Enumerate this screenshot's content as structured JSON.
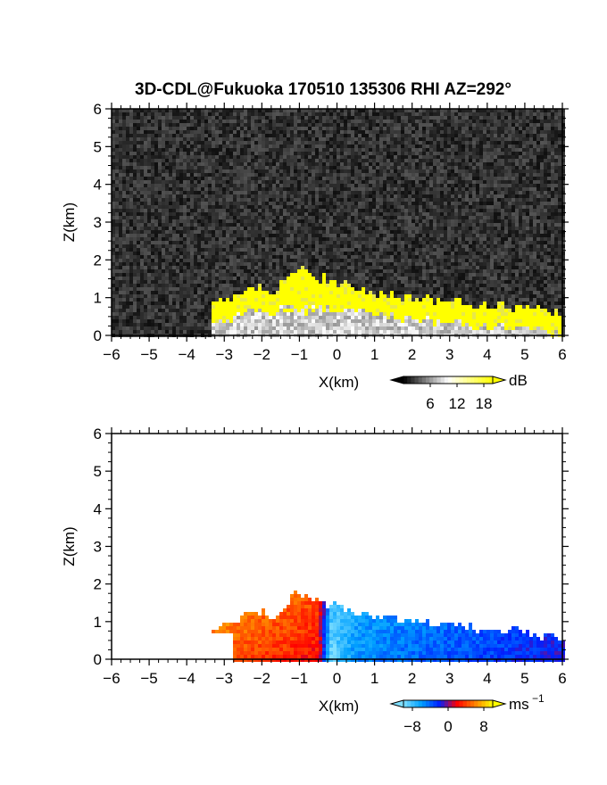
{
  "title": "3D-CDL@Fukuoka 170510 135306 RHI AZ=292°",
  "chart_data": [
    {
      "type": "heatmap",
      "quantity": "signal intensity",
      "xlabel": "X(km)",
      "ylabel": "Z(km)",
      "xlim": [
        -6,
        6
      ],
      "ylim": [
        0,
        6
      ],
      "x_ticks": [
        "-6",
        "-5",
        "-4",
        "-3",
        "-2",
        "-1",
        "0",
        "1",
        "2",
        "3",
        "4",
        "5",
        "6"
      ],
      "y_ticks": [
        "0",
        "1",
        "2",
        "3",
        "4",
        "5",
        "6"
      ],
      "background": "noise",
      "colorbar": {
        "unit": "dB",
        "ticks": [
          "6",
          "12",
          "18"
        ],
        "tick_values": [
          6,
          12,
          18
        ],
        "range": [
          0,
          20
        ],
        "colors": [
          "#000000",
          "#ffffff",
          "#ffff00"
        ]
      },
      "echo_top_km": [
        [
          -3.3,
          0.85
        ],
        [
          -3.0,
          0.9
        ],
        [
          -2.6,
          1.1
        ],
        [
          -2.3,
          1.3
        ],
        [
          -2.0,
          1.3
        ],
        [
          -1.7,
          1.1
        ],
        [
          -1.4,
          1.4
        ],
        [
          -1.1,
          1.8
        ],
        [
          -0.7,
          1.6
        ],
        [
          -0.3,
          1.5
        ],
        [
          0.0,
          1.4
        ],
        [
          0.5,
          1.3
        ],
        [
          1.0,
          1.1
        ],
        [
          1.5,
          1.05
        ],
        [
          2.0,
          1.0
        ],
        [
          2.5,
          0.95
        ],
        [
          3.0,
          0.9
        ],
        [
          3.5,
          0.85
        ],
        [
          4.0,
          0.8
        ],
        [
          4.5,
          0.75
        ],
        [
          5.0,
          0.7
        ],
        [
          5.5,
          0.65
        ],
        [
          6.0,
          0.6
        ]
      ]
    },
    {
      "type": "heatmap",
      "quantity": "radial velocity",
      "xlabel": "X(km)",
      "ylabel": "Z(km)",
      "xlim": [
        -6,
        6
      ],
      "ylim": [
        0,
        6
      ],
      "x_ticks": [
        "-6",
        "-5",
        "-4",
        "-3",
        "-2",
        "-1",
        "0",
        "1",
        "2",
        "3",
        "4",
        "5",
        "6"
      ],
      "y_ticks": [
        "0",
        "1",
        "2",
        "3",
        "4",
        "5",
        "6"
      ],
      "colorbar": {
        "unit": "ms",
        "unit_sup": "−1",
        "ticks": [
          "−8",
          "0",
          "8"
        ],
        "tick_values": [
          -8,
          0,
          8
        ],
        "range": [
          -10,
          10
        ],
        "colors": [
          "#7fdfff",
          "#00a0ff",
          "#0020ff",
          "#ff0000",
          "#ff8000",
          "#ffff00"
        ]
      },
      "velocity_profile": [
        [
          -3.5,
          6
        ],
        [
          -2.5,
          5
        ],
        [
          -1.5,
          4
        ],
        [
          -0.5,
          3
        ],
        [
          -0.15,
          -9
        ],
        [
          0.5,
          -6
        ],
        [
          1.5,
          -5
        ],
        [
          3.0,
          -4
        ],
        [
          4.5,
          -3
        ],
        [
          6.0,
          -2
        ]
      ]
    }
  ]
}
